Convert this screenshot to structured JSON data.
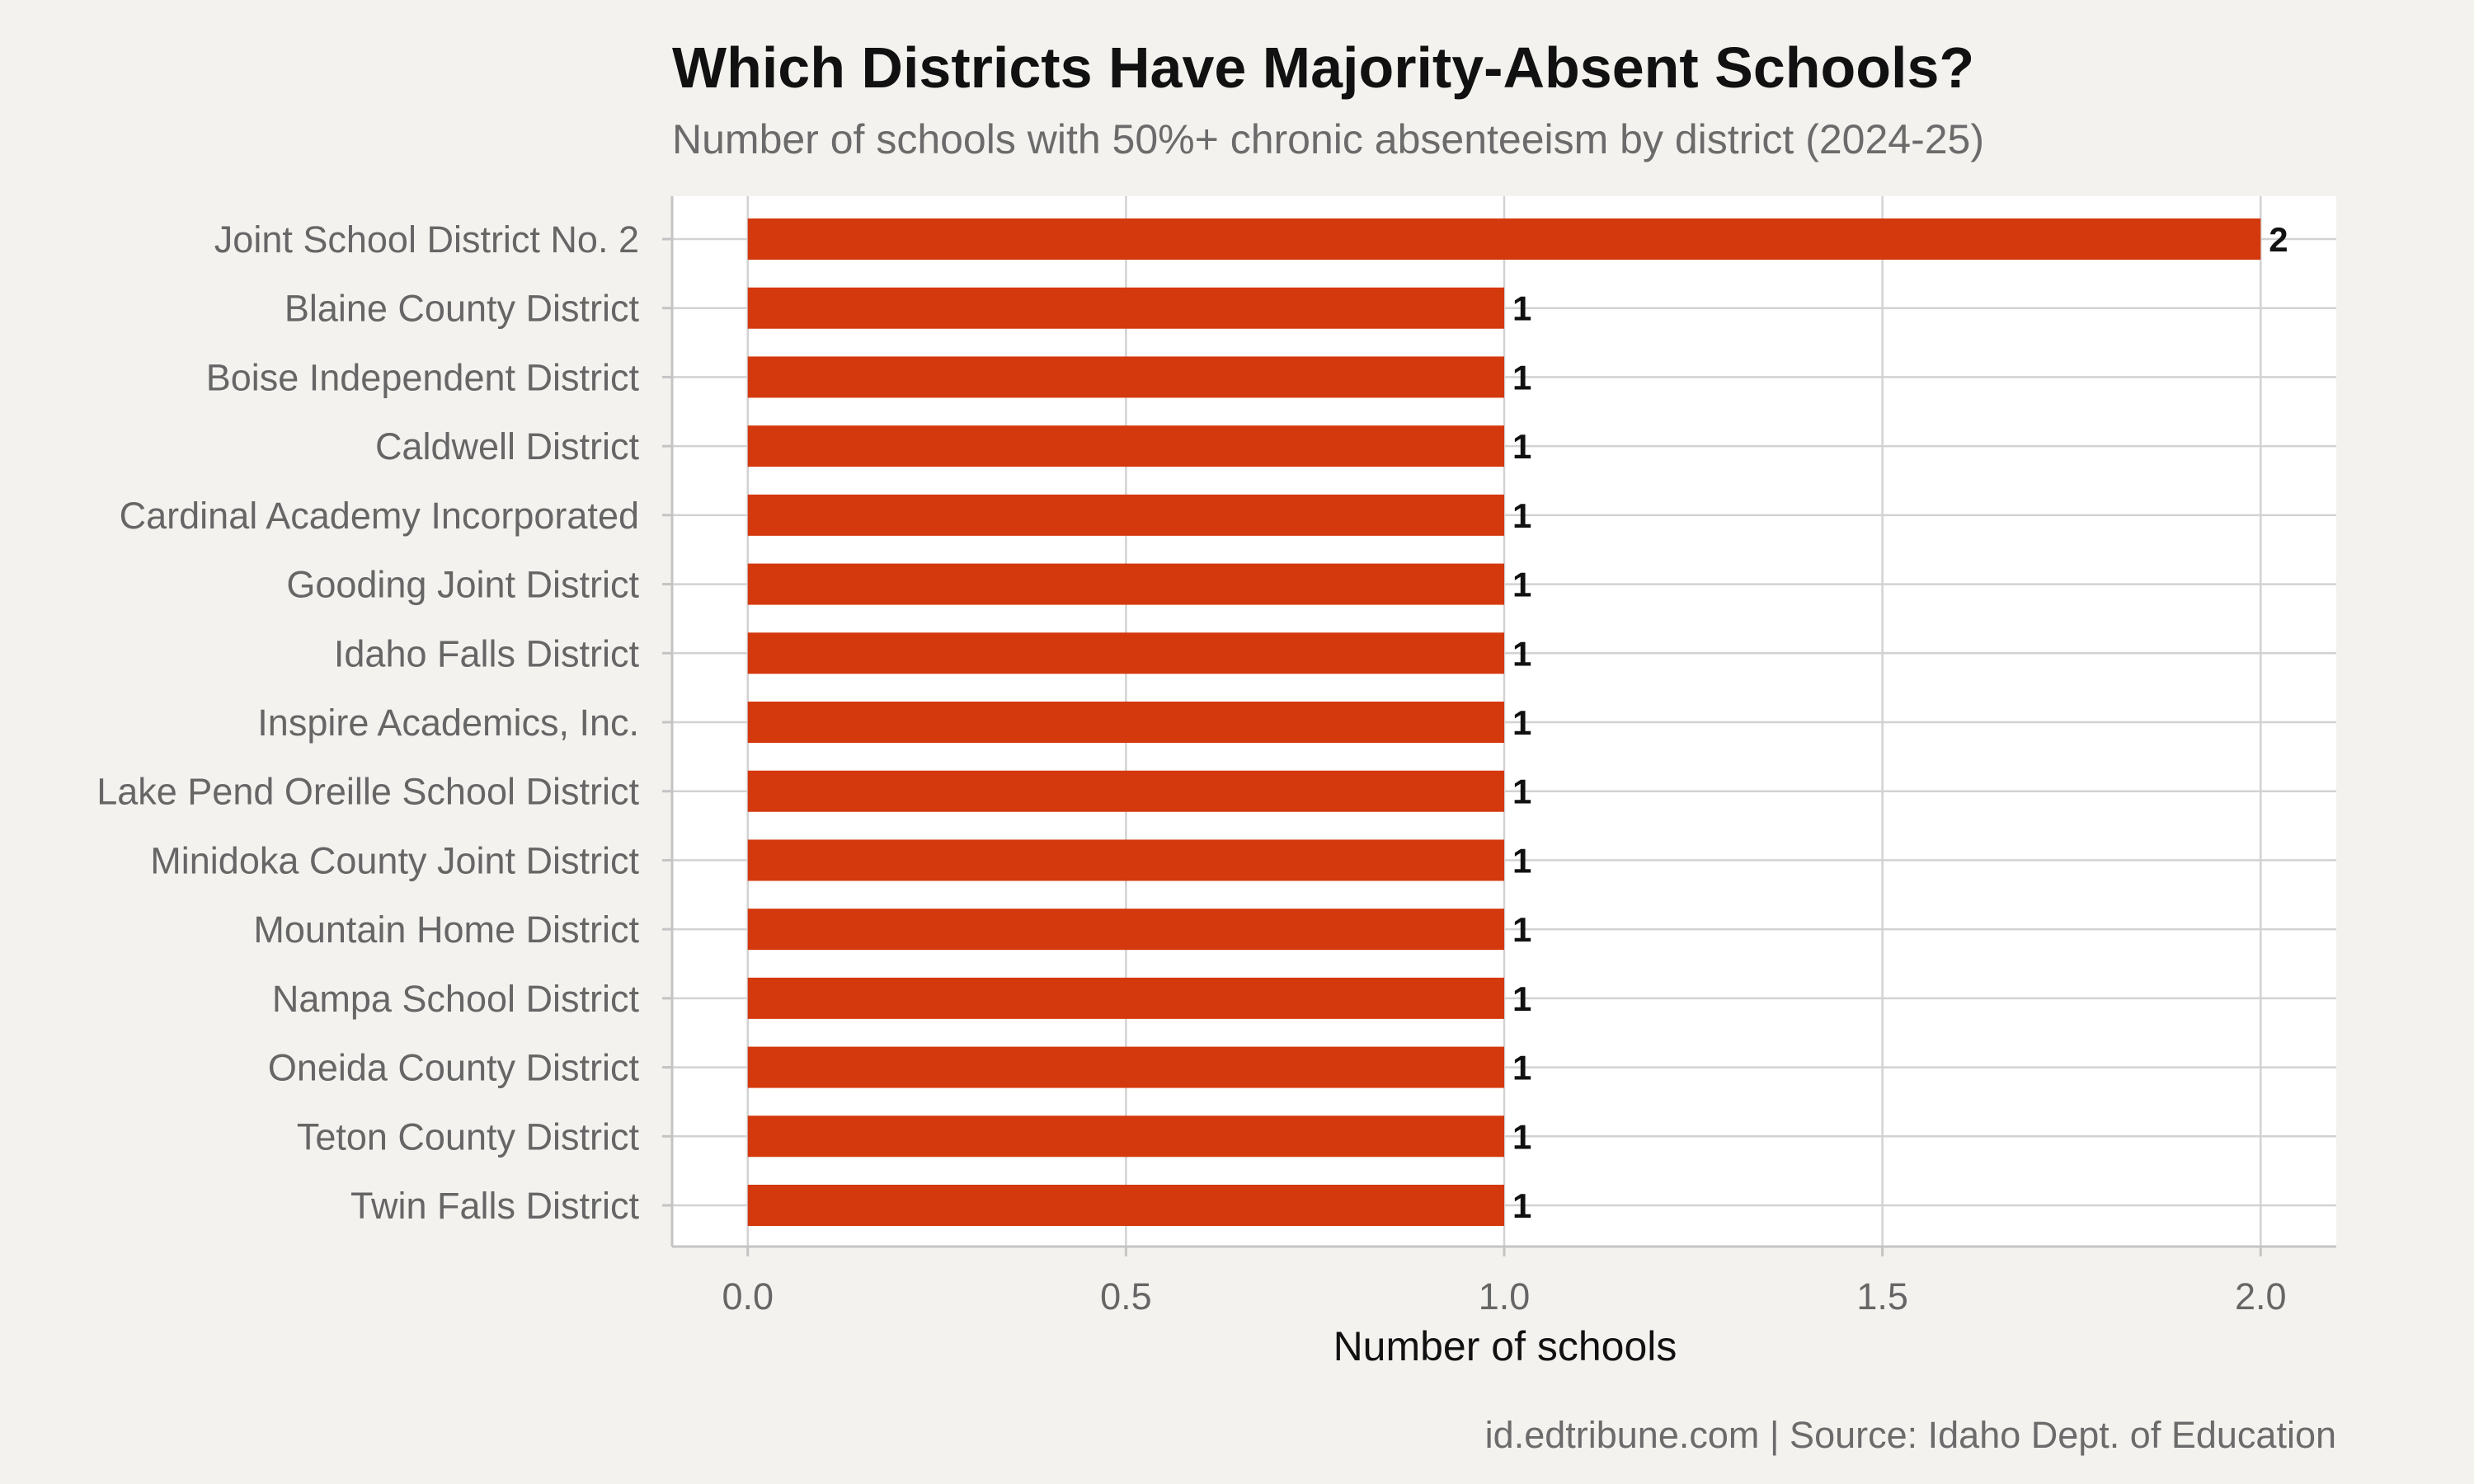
{
  "chart_data": {
    "type": "bar",
    "orientation": "horizontal",
    "title": "Which Districts Have Majority-Absent Schools?",
    "subtitle": "Number of schools with 50%+ chronic absenteeism by district (2024-25)",
    "xlabel": "Number of schools",
    "ylabel": "",
    "caption": "id.edtribune.com | Source: Idaho Dept. of Education",
    "categories": [
      "Joint School District No. 2",
      "Blaine County District",
      "Boise Independent District",
      "Caldwell District",
      "Cardinal Academy Incorporated",
      "Gooding Joint District",
      "Idaho Falls District",
      "Inspire Academics, Inc.",
      "Lake Pend Oreille School District",
      "Minidoka County Joint District",
      "Mountain Home District",
      "Nampa School District",
      "Oneida County District",
      "Teton County District",
      "Twin Falls District"
    ],
    "values": [
      2,
      1,
      1,
      1,
      1,
      1,
      1,
      1,
      1,
      1,
      1,
      1,
      1,
      1,
      1
    ],
    "data_labels": [
      "2",
      "1",
      "1",
      "1",
      "1",
      "1",
      "1",
      "1",
      "1",
      "1",
      "1",
      "1",
      "1",
      "1",
      "1"
    ],
    "xlim": [
      -0.1,
      2.1
    ],
    "xticks": [
      0,
      0.5,
      1,
      1.5,
      2
    ],
    "xtick_labels": [
      "0.0",
      "0.5",
      "1.0",
      "1.5",
      "2.0"
    ],
    "grid": true,
    "legend": "none",
    "bar_color": "#d4380d",
    "panel_color": "#ffffff",
    "background_color": "#f4f2ee"
  }
}
